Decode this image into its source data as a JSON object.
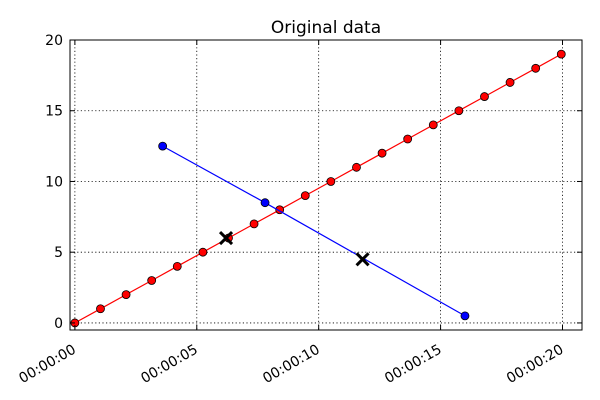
{
  "chart_data": {
    "type": "line",
    "title": "Original data",
    "xlabel": "",
    "ylabel": "",
    "xlim_seconds": [
      -0.2,
      20.8
    ],
    "ylim": [
      -0.5,
      20
    ],
    "xticks": [
      {
        "value": 0,
        "label": "00:00:00"
      },
      {
        "value": 5,
        "label": "00:00:05"
      },
      {
        "value": 10,
        "label": "00:00:10"
      },
      {
        "value": 15,
        "label": "00:00:15"
      },
      {
        "value": 20,
        "label": "00:00:20"
      }
    ],
    "yticks": [
      {
        "value": 0,
        "label": "0"
      },
      {
        "value": 5,
        "label": "5"
      },
      {
        "value": 10,
        "label": "10"
      },
      {
        "value": 15,
        "label": "15"
      },
      {
        "value": 20,
        "label": "20"
      }
    ],
    "grid": true,
    "series": [
      {
        "color": "#ff0000",
        "marker": "circle",
        "x": [
          0.0,
          1.05,
          2.1,
          3.15,
          4.2,
          5.25,
          6.3,
          7.35,
          8.4,
          9.45,
          10.5,
          11.55,
          12.6,
          13.65,
          14.7,
          15.75,
          16.8,
          17.85,
          18.9,
          19.95
        ],
        "y": [
          0,
          1,
          2,
          3,
          4,
          5,
          6,
          7,
          8,
          9,
          10,
          11,
          12,
          13,
          14,
          15,
          16,
          17,
          18,
          19
        ]
      },
      {
        "color": "#0000ff",
        "marker": "circle",
        "x": [
          3.6,
          7.8,
          16.0
        ],
        "y": [
          12.5,
          8.5,
          0.5
        ]
      }
    ],
    "markers": [
      {
        "color": "#000000",
        "marker": "x",
        "x": [
          6.2,
          11.8
        ],
        "y": [
          6.0,
          4.5
        ]
      }
    ]
  }
}
